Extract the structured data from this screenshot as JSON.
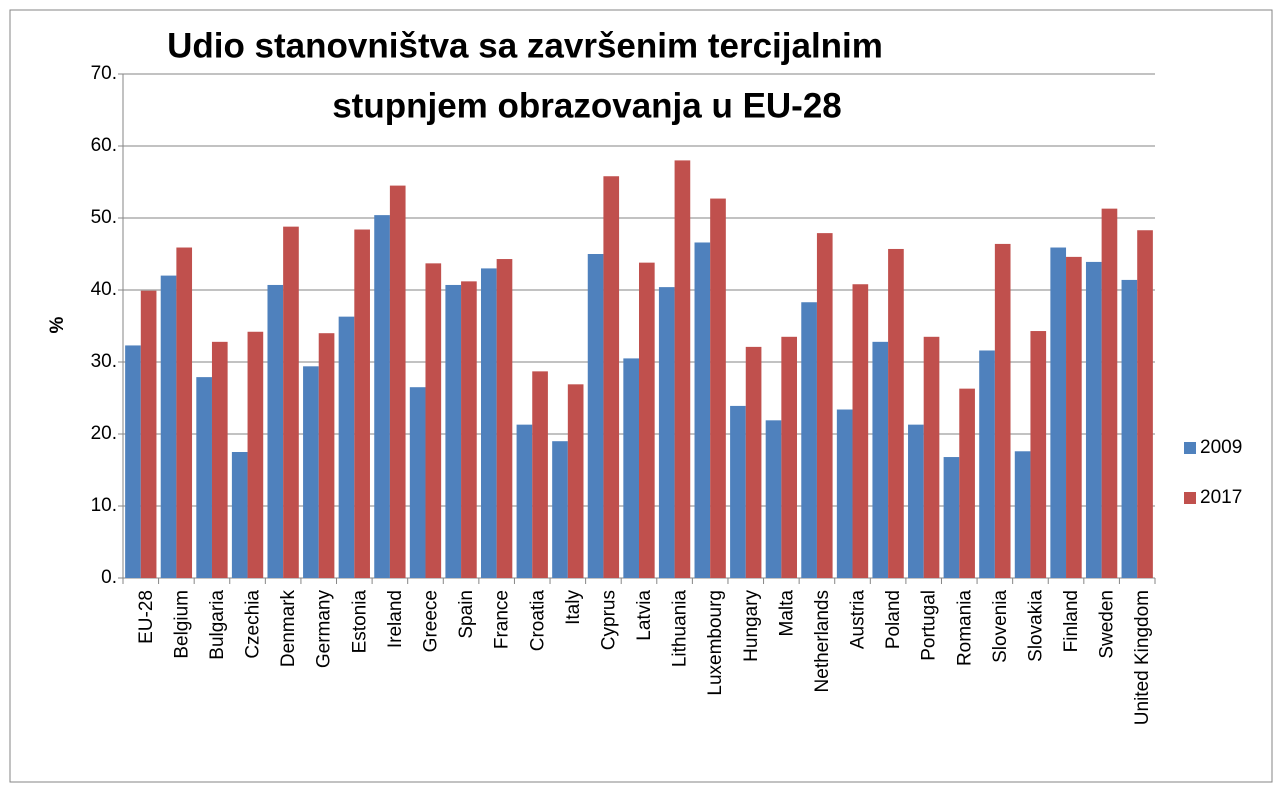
{
  "chart_data": {
    "type": "bar",
    "title": [
      "Udio stanovništva sa završenim tercijalnim",
      "stupnjem obrazovanja u EU-28"
    ],
    "y_label": "%",
    "categories": [
      "EU-28",
      "Belgium",
      "Bulgaria",
      "Czechia",
      "Denmark",
      "Germany",
      "Estonia",
      "Ireland",
      "Greece",
      "Spain",
      "France",
      "Croatia",
      "Italy",
      "Cyprus",
      "Latvia",
      "Lithuania",
      "Luxembourg",
      "Hungary",
      "Malta",
      "Netherlands",
      "Austria",
      "Poland",
      "Portugal",
      "Romania",
      "Slovenia",
      "Slovakia",
      "Finland",
      "Sweden",
      "United Kingdom"
    ],
    "series": [
      {
        "name": "2009",
        "color": "#4f81bd",
        "values": [
          32.3,
          42.0,
          27.9,
          17.5,
          40.7,
          29.4,
          36.3,
          50.4,
          26.5,
          40.7,
          43.0,
          21.3,
          19.0,
          45.0,
          30.5,
          40.4,
          46.6,
          23.9,
          21.9,
          38.3,
          23.4,
          32.8,
          21.3,
          16.8,
          31.6,
          17.6,
          45.9,
          43.9,
          41.4
        ]
      },
      {
        "name": "2017",
        "color": "#c0504d",
        "values": [
          39.9,
          45.9,
          32.8,
          34.2,
          48.8,
          34.0,
          48.4,
          54.5,
          43.7,
          41.2,
          44.3,
          28.7,
          26.9,
          55.8,
          43.8,
          58.0,
          52.7,
          32.1,
          33.5,
          47.9,
          40.8,
          45.7,
          33.5,
          26.3,
          46.4,
          34.3,
          44.6,
          51.3,
          48.3
        ]
      }
    ],
    "ylim": [
      0,
      70
    ],
    "yticks": [
      {
        "value": 0,
        "label": "0."
      },
      {
        "value": 10,
        "label": "10."
      },
      {
        "value": 20,
        "label": "20."
      },
      {
        "value": 30,
        "label": "30."
      },
      {
        "value": 40,
        "label": "40."
      },
      {
        "value": 50,
        "label": "50."
      },
      {
        "value": 60,
        "label": "60."
      },
      {
        "value": 70,
        "label": "70."
      }
    ],
    "grid": true,
    "legend": "right"
  }
}
